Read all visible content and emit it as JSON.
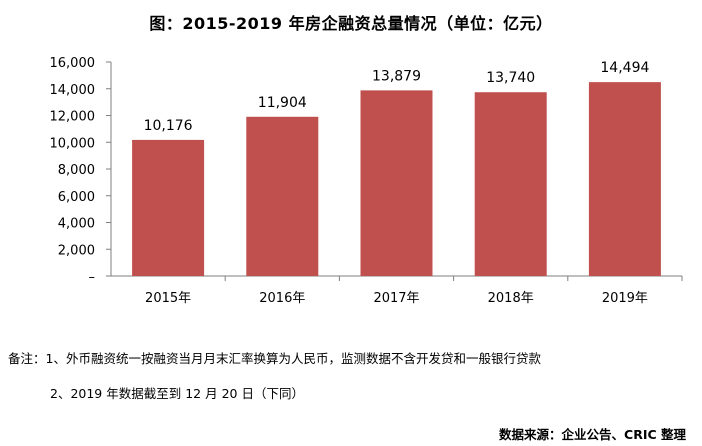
{
  "title": "图：2015-2019 年房企融资总量情况（单位：亿元）",
  "chart_data": {
    "type": "bar",
    "categories": [
      "2015年",
      "2016年",
      "2017年",
      "2018年",
      "2019年"
    ],
    "values": [
      10176,
      11904,
      13879,
      13740,
      14494
    ],
    "value_labels": [
      "10,176",
      "11,904",
      "13,879",
      "13,740",
      "14,494"
    ],
    "yticks": [
      "–",
      "2,000",
      "4,000",
      "6,000",
      "8,000",
      "10,000",
      "12,000",
      "14,000",
      "16,000"
    ],
    "ylim": [
      0,
      16000
    ],
    "bar_color": "#c0504d",
    "grid": false,
    "legend": "none"
  },
  "notes": {
    "line1": "备注：1、外币融资统一按融资当月月末汇率换算为人民币，监测数据不含开发贷和一般银行贷款",
    "line2": "2、2019 年数据截至到 12 月 20 日（下同）"
  },
  "source": "数据来源：企业公告、CRIC 整理"
}
